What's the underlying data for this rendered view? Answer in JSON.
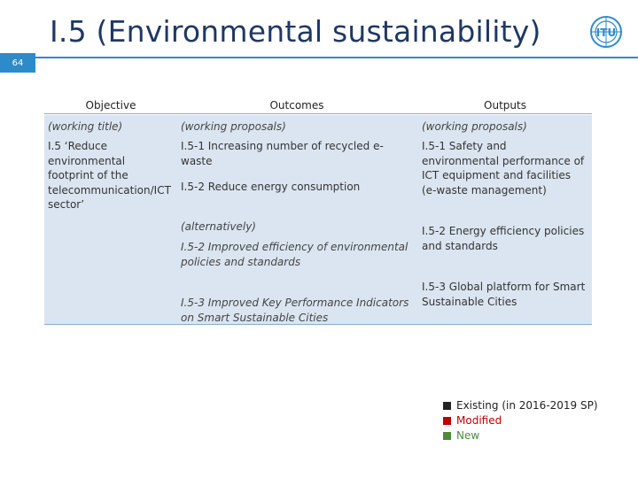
{
  "slide": {
    "title": "I.5 (Environmental sustainability)",
    "number": "64",
    "logo_label": "ITU"
  },
  "columns": {
    "objective": "Objective",
    "outcomes": "Outcomes",
    "outputs": "Outputs"
  },
  "subheaders": {
    "objective": "(working title)",
    "outcomes": "(working proposals)",
    "outputs": "(working proposals)"
  },
  "objective_text": "I.5 ‘Reduce environmental footprint of the telecommunication/ICT sector’",
  "outcomes": {
    "o1": "I.5-1 Increasing number of recycled e-waste",
    "o2": "I.5-2 Reduce energy consumption",
    "alt_label": "(alternatively)",
    "o2_alt": "I.5-2 Improved efficiency of environmental policies and standards",
    "o3": "I.5-3 Improved Key Performance Indicators on Smart Sustainable Cities"
  },
  "outputs": {
    "p1": "I.5-1 Safety and environmental performance of ICT equipment and facilities (e-waste management)",
    "p2": "I.5-2 Energy efficiency policies and standards",
    "p3": "I.5-3 Global platform for Smart Sustainable Cities"
  },
  "legend": [
    {
      "label": "Existing (in 2016-2019 SP)",
      "color": "#222222"
    },
    {
      "label": "Modified",
      "color": "#c00000"
    },
    {
      "label": "New",
      "color": "#4e8a3e"
    }
  ],
  "colors": {
    "title": "#1f3864",
    "accent_bar": "#2e8bc9",
    "table_fill": "#dbe5f1"
  }
}
